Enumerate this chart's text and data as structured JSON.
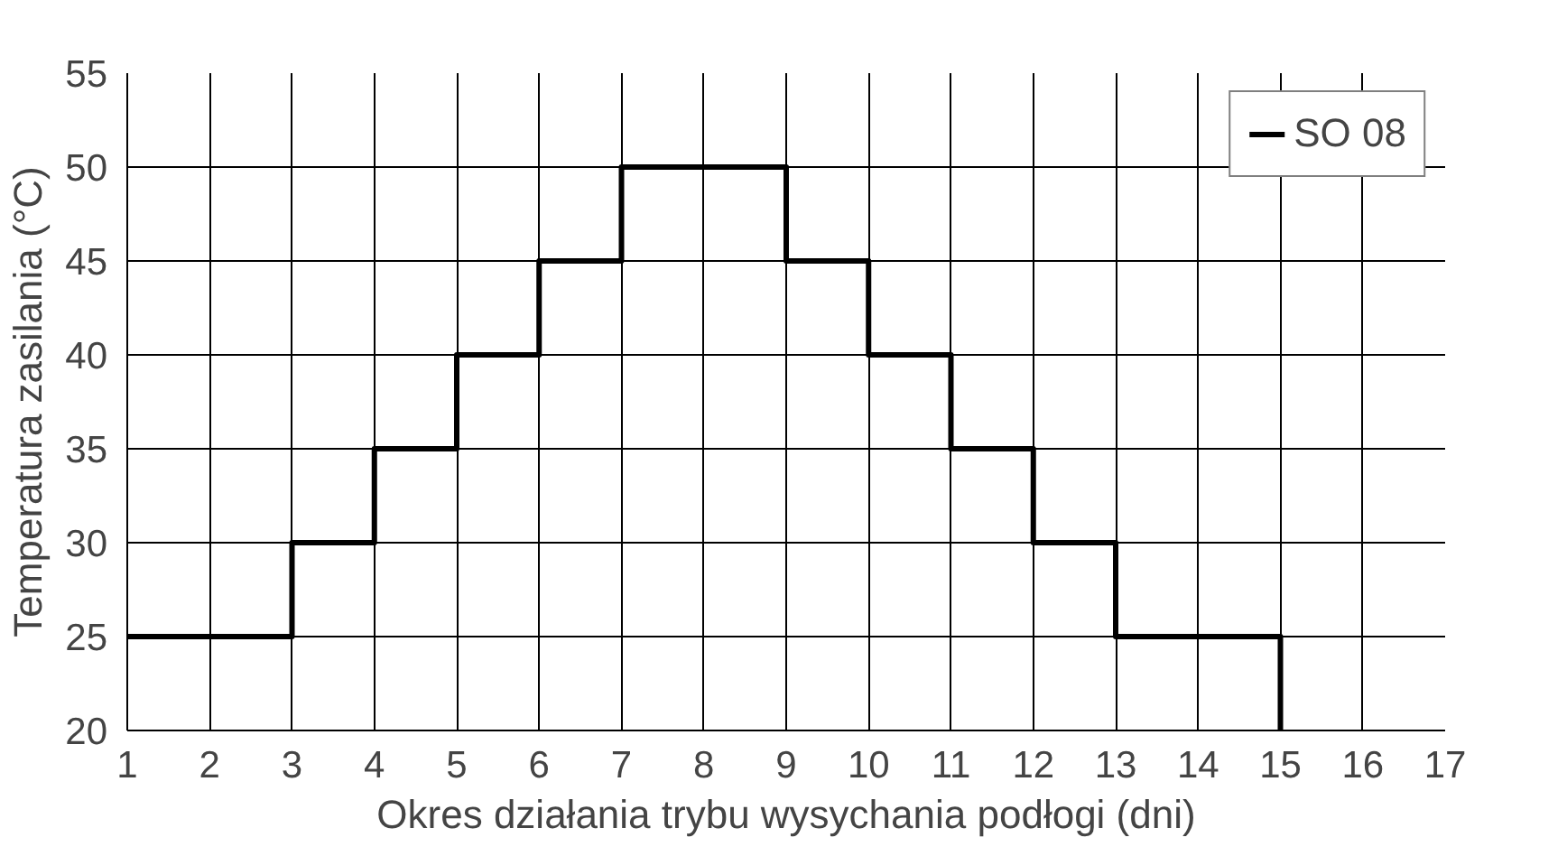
{
  "chart_data": {
    "type": "step",
    "xlabel": "Okres działania trybu wysychania podłogi (dni)",
    "ylabel": "Temperatura zasilania (°C)",
    "x": [
      1,
      2,
      3,
      4,
      5,
      6,
      7,
      8,
      9,
      10,
      11,
      12,
      13,
      14,
      15
    ],
    "series": [
      {
        "name": "SO 08",
        "color": "#000000",
        "values": [
          25,
          25,
          30,
          35,
          40,
          45,
          50,
          50,
          45,
          40,
          35,
          30,
          25,
          25,
          20
        ]
      }
    ],
    "xlim": [
      1,
      17
    ],
    "xticks": [
      1,
      2,
      3,
      4,
      5,
      6,
      7,
      8,
      9,
      10,
      11,
      12,
      13,
      14,
      15,
      16,
      17
    ],
    "ylim": [
      20,
      55
    ],
    "yticks": [
      20,
      25,
      30,
      35,
      40,
      45,
      50,
      55
    ],
    "grid": true,
    "legend": "top right",
    "line_style": "solid",
    "marker": "none"
  }
}
